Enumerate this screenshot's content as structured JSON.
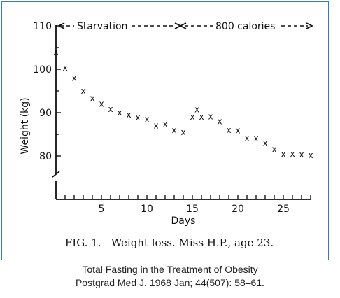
{
  "chart_data": {
    "type": "scatter",
    "title": "",
    "xlabel": "Days",
    "ylabel": "Weight (kg)",
    "xlim": [
      0,
      28
    ],
    "ylim": [
      75,
      110
    ],
    "xticks": [
      5,
      10,
      15,
      20,
      25
    ],
    "yticks": [
      80,
      90,
      100,
      110
    ],
    "y_axis_break": true,
    "marker": "x",
    "x": [
      0,
      1,
      2,
      3,
      4,
      5,
      6,
      7,
      8,
      9,
      10,
      11,
      12,
      13,
      14,
      15,
      15.5,
      16,
      17,
      18,
      19,
      20,
      21,
      22,
      23,
      24,
      25,
      26,
      27,
      28
    ],
    "values": [
      104,
      100.3,
      98,
      95,
      93.3,
      92,
      90.8,
      90,
      89.5,
      88.9,
      88.5,
      87,
      87.3,
      86,
      85.5,
      89,
      90.7,
      89,
      89.1,
      88,
      86,
      85.9,
      84.1,
      84,
      83,
      81.5,
      80.4,
      80.5,
      80.3,
      80.2
    ],
    "annotations": [
      {
        "text": "Starvation",
        "from_day": 0,
        "to_day": 14
      },
      {
        "text": "800 calories",
        "from_day": 14,
        "to_day": 28
      }
    ],
    "figure_caption": "FIG. 1.   Weight loss. Miss H.P., age 23."
  },
  "caption": {
    "line1": "Total Fasting in the Treatment of Obesity",
    "line2": "Postgrad Med J. 1968 Jan; 44(507): 58–61."
  }
}
